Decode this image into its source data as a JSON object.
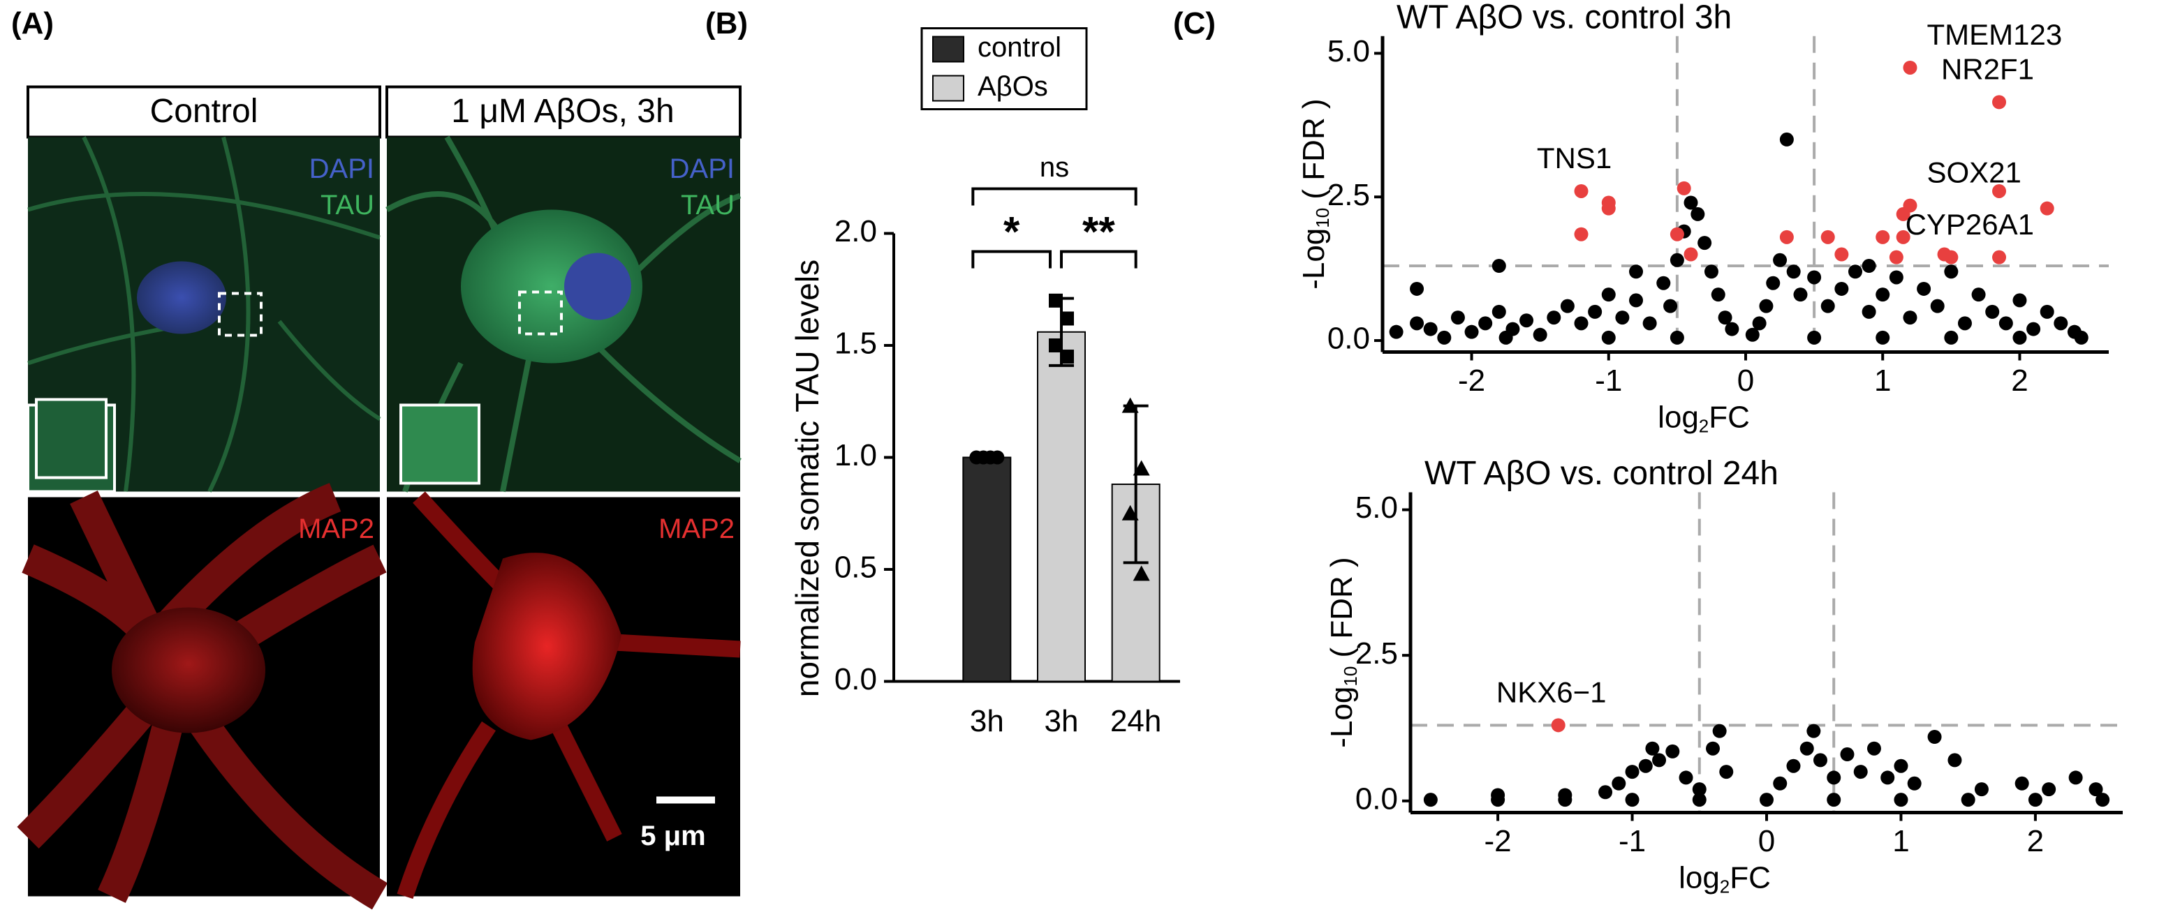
{
  "panel_labels": [
    "(A)",
    "(B)",
    "(C)"
  ],
  "panel_a": {
    "conditions": [
      "Control",
      "1 μM AβOs, 3h"
    ],
    "stains_top": [
      "DAPI",
      "TAU"
    ],
    "stain_bottom": "MAP2",
    "scale_bar": "5 μm"
  },
  "chart_data": [
    {
      "type": "bar",
      "y_label": "normalized somatic TAU levels",
      "categories": [
        "3h",
        "3h",
        "24h"
      ],
      "series": [
        {
          "name": "control",
          "color": "#2b2b2b",
          "values": [
            1.0,
            null,
            null
          ]
        },
        {
          "name": "AβOs",
          "color": "#d0d0d0",
          "values": [
            null,
            1.56,
            0.88
          ]
        }
      ],
      "errors": [
        null,
        0.15,
        0.35
      ],
      "points": [
        [
          1.0,
          1.0,
          1.0,
          1.0
        ],
        [
          1.7,
          1.62,
          1.5,
          1.45
        ],
        [
          1.23,
          0.95,
          0.75,
          0.48
        ]
      ],
      "markers": [
        "circle",
        "square",
        "triangle"
      ],
      "comparisons": [
        {
          "label": "ns",
          "groups": [
            0,
            2
          ]
        },
        {
          "label": "*",
          "groups": [
            0,
            1
          ]
        },
        {
          "label": "**",
          "groups": [
            1,
            2
          ]
        }
      ],
      "ylim": [
        0,
        2.0
      ],
      "yticks": [
        {
          "value": 0,
          "label": "0.0"
        },
        0.5,
        {
          "value": 1,
          "label": "1.0"
        },
        1.5,
        {
          "value": 2,
          "label": "2.0"
        }
      ],
      "legend": "top"
    },
    {
      "type": "scatter",
      "title": "WT AβO vs. control 3h",
      "x_label": [
        "log",
        "2",
        "FC"
      ],
      "y_label": [
        "-Log",
        "10",
        " ( FDR )"
      ],
      "xlim": [
        -2.65,
        2.65
      ],
      "ylim": [
        -0.2,
        5.3
      ],
      "xticks": [
        -2,
        -1,
        0,
        1,
        2
      ],
      "yticks": [
        {
          "value": 0,
          "label": "0.0"
        },
        2.5,
        {
          "value": 5,
          "label": "5.0"
        }
      ],
      "thresholds": {
        "x": [
          -0.5,
          0.5
        ],
        "y": 1.3
      },
      "series": [
        {
          "color": "#000000",
          "x": [
            -2.55,
            -2.4,
            -2.3,
            -2.1,
            -2.0,
            -1.9,
            -1.8,
            -1.7,
            -1.6,
            -1.5,
            -1.4,
            -1.3,
            -1.2,
            -1.1,
            -1.0,
            -0.9,
            -0.8,
            -0.7,
            -0.6,
            -0.55,
            -0.5,
            -0.45,
            -0.4,
            -0.35,
            -0.3,
            -0.25,
            -0.2,
            -0.15,
            -0.1,
            0.05,
            0.1,
            0.15,
            0.2,
            0.25,
            0.3,
            0.35,
            0.4,
            0.5,
            0.6,
            0.7,
            0.8,
            0.9,
            1.0,
            1.1,
            1.2,
            1.3,
            1.4,
            1.5,
            1.6,
            1.7,
            1.8,
            1.9,
            2.0,
            2.1,
            2.2,
            2.3,
            2.4,
            -2.4,
            -2.2,
            -1.75,
            -1.0,
            -0.5,
            0.5,
            1.0,
            1.5,
            2.0,
            2.45,
            -0.8,
            0.9,
            -1.8
          ],
          "values": [
            0.15,
            0.3,
            0.2,
            0.4,
            0.15,
            0.3,
            0.5,
            0.2,
            0.35,
            0.1,
            0.4,
            0.6,
            0.3,
            0.5,
            0.8,
            0.4,
            0.7,
            0.3,
            1.0,
            0.6,
            1.4,
            1.9,
            2.4,
            2.2,
            1.7,
            1.2,
            0.8,
            0.4,
            0.2,
            0.1,
            0.3,
            0.6,
            1.0,
            1.4,
            3.5,
            1.2,
            0.8,
            1.1,
            0.6,
            0.9,
            1.2,
            0.5,
            0.8,
            1.1,
            0.4,
            0.9,
            0.6,
            1.2,
            0.3,
            0.8,
            0.5,
            0.3,
            0.7,
            0.2,
            0.5,
            0.3,
            0.15,
            0.9,
            0.05,
            0.05,
            0.05,
            0.05,
            0.05,
            0.05,
            0.05,
            0.05,
            0.05,
            1.2,
            1.3,
            1.3
          ]
        },
        {
          "color": "#e8403f",
          "x": [
            1.2,
            1.85,
            1.2,
            1.15,
            1.85,
            2.2,
            1.85,
            1.0,
            1.15,
            1.5,
            0.6,
            0.3,
            1.1,
            0.7,
            1.45,
            -1.2,
            -1.0,
            -1.0,
            -1.2,
            -0.45,
            -0.5,
            -0.4
          ],
          "values": [
            4.75,
            4.15,
            2.35,
            2.2,
            2.6,
            2.3,
            1.45,
            1.8,
            1.8,
            1.45,
            1.8,
            1.8,
            1.45,
            1.5,
            1.5,
            2.6,
            2.4,
            2.3,
            1.85,
            2.65,
            1.85,
            1.5
          ],
          "labels": [
            "TMEM123",
            "NR2F1",
            "SOX21",
            null,
            null,
            null,
            "CYP26A1",
            null,
            null,
            null,
            null,
            null,
            null,
            null,
            null,
            "TNS1",
            null,
            null,
            null,
            null,
            null,
            null
          ]
        }
      ]
    },
    {
      "type": "scatter",
      "title": "WT AβO vs. control 24h",
      "x_label": [
        "log",
        "2",
        "FC"
      ],
      "y_label": [
        "-Log",
        "10",
        " ( FDR )"
      ],
      "xlim": [
        -2.65,
        2.65
      ],
      "ylim": [
        -0.2,
        5.3
      ],
      "xticks": [
        -2,
        -1,
        0,
        1,
        2
      ],
      "yticks": [
        {
          "value": 0,
          "label": "0.0"
        },
        2.5,
        {
          "value": 5,
          "label": "5.0"
        }
      ],
      "thresholds": {
        "x": [
          -0.5,
          0.5
        ],
        "y": 1.3
      },
      "series": [
        {
          "color": "#000000",
          "x": [
            -2.5,
            -2,
            -1.5,
            -1,
            -0.5,
            0,
            0.5,
            1,
            1.5,
            2,
            2.5,
            -1.2,
            -1.1,
            -1.0,
            -0.9,
            -0.85,
            -0.8,
            -0.7,
            -0.6,
            -0.5,
            -0.4,
            -0.35,
            -0.3,
            0.1,
            0.2,
            0.3,
            0.35,
            0.4,
            0.5,
            0.6,
            0.7,
            0.8,
            0.9,
            1.0,
            1.1,
            1.25,
            1.4,
            1.6,
            1.9,
            2.1,
            2.3,
            2.45,
            -1.5,
            -2.0
          ],
          "values": [
            0.02,
            0.02,
            0.02,
            0.02,
            0.02,
            0.02,
            0.02,
            0.02,
            0.02,
            0.02,
            0.02,
            0.15,
            0.3,
            0.5,
            0.6,
            0.9,
            0.7,
            0.85,
            0.4,
            0.2,
            0.9,
            1.2,
            0.5,
            0.3,
            0.6,
            0.9,
            1.2,
            0.7,
            0.4,
            0.8,
            0.5,
            0.9,
            0.4,
            0.6,
            0.3,
            1.1,
            0.7,
            0.2,
            0.3,
            0.2,
            0.4,
            0.2,
            0.1,
            0.1
          ]
        },
        {
          "color": "#e8403f",
          "x": [
            -1.55
          ],
          "values": [
            1.3
          ],
          "labels": [
            "NKX6−1"
          ]
        }
      ]
    }
  ]
}
